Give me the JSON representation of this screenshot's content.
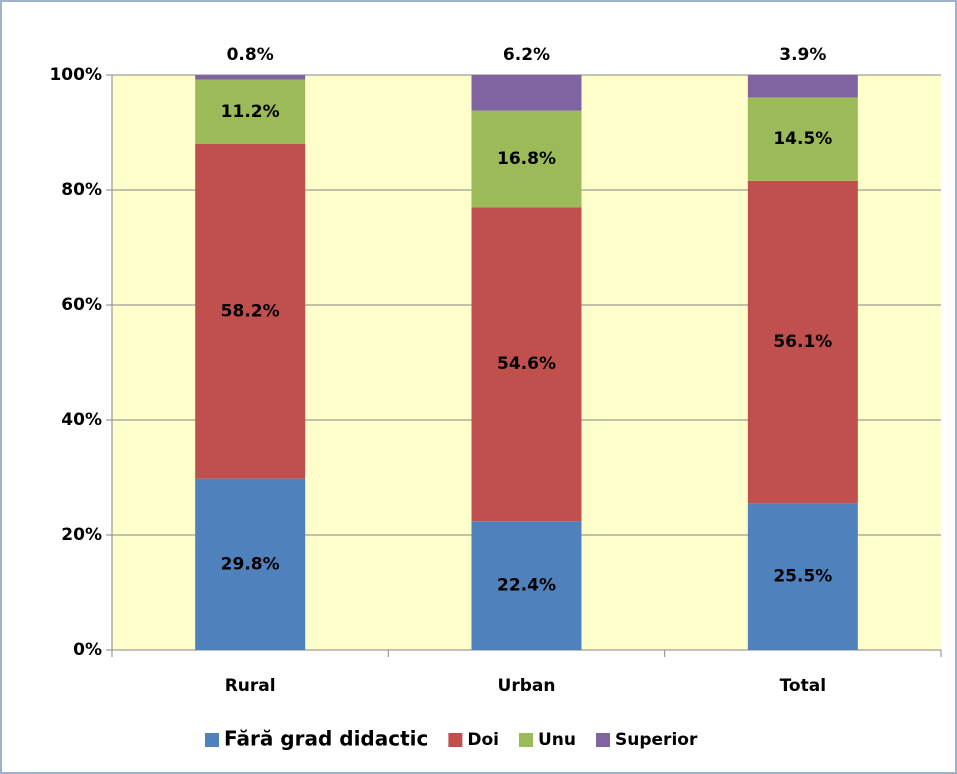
{
  "chart_data": {
    "type": "stacked_bar",
    "categories": [
      "Rural",
      "Urban",
      "Total"
    ],
    "series": [
      {
        "name": "Fără grad didactic",
        "color": "#4F81BD",
        "values": [
          29.8,
          22.4,
          25.5
        ],
        "value_labels": [
          "29.8%",
          "22.4%",
          "25.5%"
        ]
      },
      {
        "name": "Doi",
        "color": "#C0504D",
        "values": [
          58.2,
          54.6,
          56.1
        ],
        "value_labels": [
          "58.2%",
          "54.6%",
          "56.1%"
        ]
      },
      {
        "name": "Unu",
        "color": "#9BBB59",
        "values": [
          11.2,
          16.8,
          14.5
        ],
        "value_labels": [
          "11.2%",
          "16.8%",
          "14.5%"
        ]
      },
      {
        "name": "Superior",
        "color": "#8064A2",
        "values": [
          0.8,
          6.2,
          3.9
        ],
        "value_labels": [
          "0.8%",
          "6.2%",
          "3.9%"
        ]
      }
    ],
    "ylim": [
      0,
      100
    ],
    "yticks": [
      {
        "value": 0,
        "label": "0%"
      },
      {
        "value": 20,
        "label": "20%"
      },
      {
        "value": 40,
        "label": "40%"
      },
      {
        "value": 60,
        "label": "60%"
      },
      {
        "value": 80,
        "label": "80%"
      },
      {
        "value": 100,
        "label": "100%"
      }
    ],
    "grid": true,
    "legend": "bottom",
    "plot_background": "#FFFFCC"
  }
}
